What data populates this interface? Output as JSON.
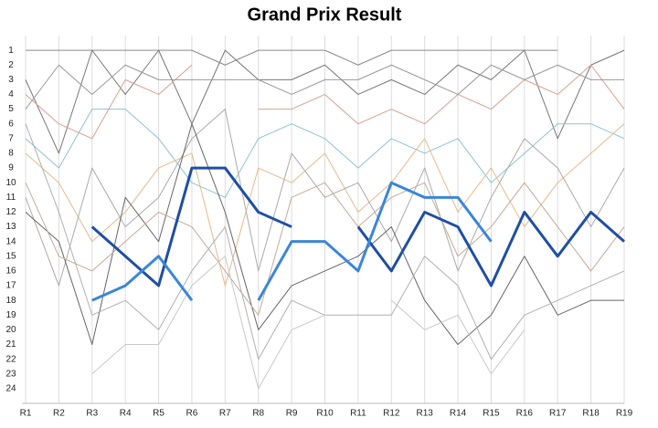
{
  "chart_data": {
    "type": "line",
    "title": "Grand Prix Result",
    "categories": [
      "R1",
      "R2",
      "R3",
      "R4",
      "R5",
      "R6",
      "R7",
      "R8",
      "R9",
      "R10",
      "R11",
      "R12",
      "R13",
      "R14",
      "R15",
      "R16",
      "R17",
      "R18",
      "R19"
    ],
    "ylim": [
      25,
      0
    ],
    "yticks": [
      1,
      2,
      3,
      4,
      5,
      6,
      7,
      8,
      9,
      10,
      11,
      12,
      13,
      14,
      15,
      16,
      17,
      18,
      19,
      20,
      21,
      22,
      23,
      24
    ],
    "grid": true,
    "series": [
      {
        "color": "#8a8a8a",
        "line_width": 1,
        "values": [
          1,
          1,
          1,
          1,
          1,
          1,
          2,
          1,
          1,
          1,
          2,
          1,
          1,
          1,
          1,
          1,
          1,
          null,
          null
        ]
      },
      {
        "color": "#777777",
        "line_width": 1,
        "values": [
          3,
          8,
          1,
          4,
          1,
          6,
          1,
          3,
          3,
          2,
          4,
          3,
          4,
          2,
          3,
          1,
          7,
          2,
          1
        ]
      },
      {
        "color": "#d9a090",
        "line_width": 1,
        "values": [
          4,
          6,
          7,
          3,
          4,
          2,
          null,
          5,
          5,
          4,
          6,
          5,
          6,
          4,
          5,
          3,
          4,
          2,
          5
        ]
      },
      {
        "color": "#999999",
        "line_width": 1,
        "values": [
          5,
          2,
          4,
          2,
          3,
          3,
          3,
          3,
          4,
          3,
          3,
          2,
          3,
          4,
          2,
          3,
          2,
          3,
          3
        ]
      },
      {
        "color": "#8fc1d6",
        "line_width": 1,
        "values": [
          7,
          9,
          5,
          5,
          7,
          10,
          11,
          7,
          6,
          7,
          9,
          7,
          8,
          7,
          10,
          8,
          6,
          6,
          7
        ]
      },
      {
        "color": "#e8b98a",
        "line_width": 1,
        "values": [
          8,
          10,
          14,
          12,
          9,
          8,
          17,
          9,
          10,
          8,
          12,
          10,
          7,
          12,
          9,
          13,
          10,
          8,
          6
        ]
      },
      {
        "color": "#aaaaaa",
        "line_width": 1,
        "values": [
          11,
          17,
          9,
          13,
          11,
          7,
          5,
          16,
          8,
          11,
          10,
          14,
          9,
          16,
          11,
          7,
          9,
          13,
          9
        ]
      },
      {
        "color": "#666666",
        "line_width": 1,
        "values": [
          12,
          14,
          21,
          11,
          14,
          6,
          12,
          20,
          17,
          16,
          15,
          13,
          18,
          21,
          19,
          15,
          19,
          18,
          18
        ]
      },
      {
        "color": "#b0b0b0",
        "line_width": 1,
        "values": [
          6,
          12,
          19,
          18,
          20,
          16,
          13,
          22,
          18,
          19,
          19,
          19,
          15,
          17,
          22,
          19,
          18,
          17,
          16
        ]
      },
      {
        "color": "#c7a898",
        "line_width": 1,
        "values": [
          10,
          15,
          16,
          14,
          12,
          13,
          16,
          19,
          11,
          10,
          13,
          11,
          10,
          15,
          13,
          10,
          13,
          16,
          13
        ]
      },
      {
        "color": "#c8c8c8",
        "line_width": 1,
        "values": [
          null,
          null,
          23,
          21,
          21,
          17,
          15,
          24,
          20,
          19,
          null,
          18,
          20,
          19,
          23,
          20,
          null,
          null,
          null
        ]
      },
      {
        "color": "#1f4fa3",
        "line_width": 3,
        "values": [
          null,
          null,
          13,
          15,
          17,
          9,
          9,
          12,
          13,
          null,
          13,
          16,
          12,
          13,
          17,
          12,
          15,
          12,
          14
        ]
      },
      {
        "color": "#3a86d8",
        "line_width": 3,
        "values": [
          null,
          null,
          18,
          17,
          15,
          18,
          null,
          18,
          14,
          14,
          16,
          10,
          11,
          11,
          14,
          null,
          null,
          null,
          null
        ]
      }
    ]
  }
}
